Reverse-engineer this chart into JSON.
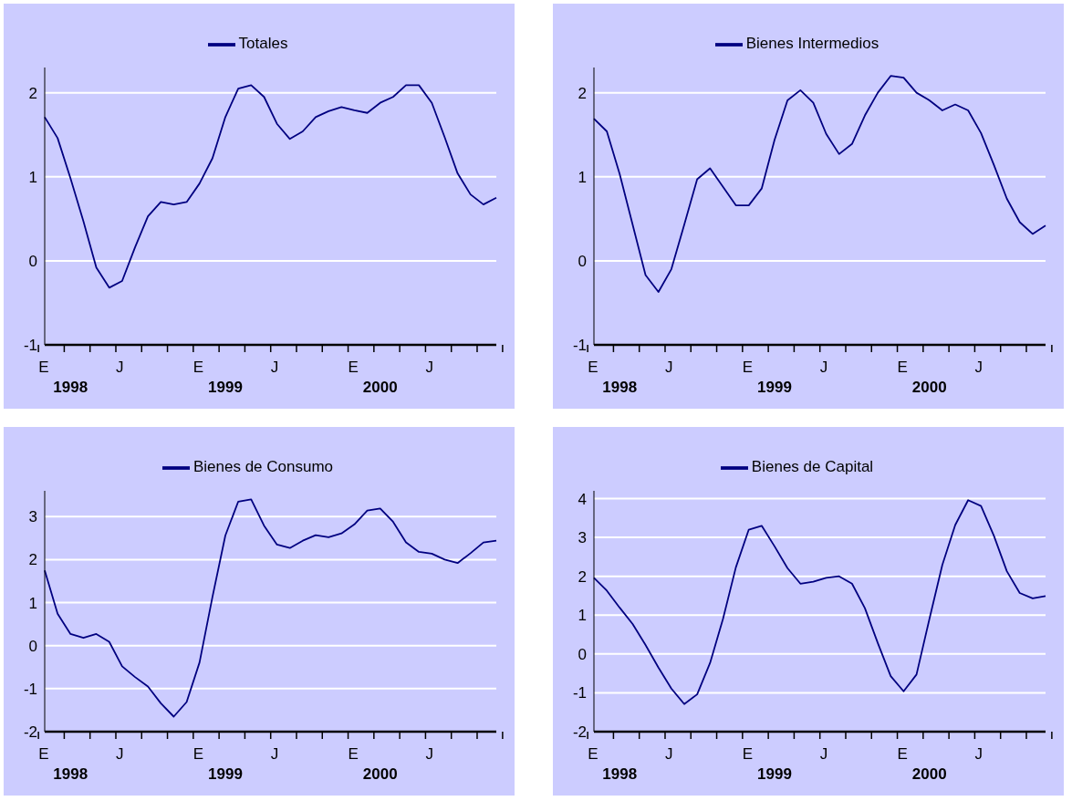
{
  "chart_data": [
    {
      "type": "line",
      "categories": [
        "E",
        null,
        null,
        null,
        null,
        null,
        "J",
        null,
        null,
        null,
        null,
        null,
        "E",
        null,
        null,
        null,
        null,
        null,
        "J",
        null,
        null,
        null,
        null,
        null,
        "E",
        null,
        null,
        null,
        null,
        null,
        "J",
        null,
        null,
        null,
        null,
        null
      ],
      "annotations": [
        "1998",
        "1999",
        "2000"
      ],
      "series": [
        {
          "name": "Totales",
          "color": "#000080",
          "values": [
            1.71,
            1.46,
            0.98,
            0.47,
            -0.08,
            -0.32,
            -0.24,
            0.16,
            0.53,
            0.7,
            0.67,
            0.7,
            0.92,
            1.22,
            1.71,
            2.05,
            2.09,
            1.95,
            1.63,
            1.45,
            1.54,
            1.71,
            1.78,
            1.83,
            1.79,
            1.76,
            1.88,
            1.95,
            2.09,
            2.09,
            1.88,
            1.47,
            1.04,
            0.79,
            0.67,
            0.75
          ]
        }
      ],
      "ylim": [
        -1,
        2.3
      ],
      "yticks": [
        -1,
        0,
        1,
        2
      ],
      "grid": "y",
      "legend": "top",
      "marker": "none"
    },
    {
      "type": "line",
      "categories": [
        "E",
        null,
        null,
        null,
        null,
        null,
        "J",
        null,
        null,
        null,
        null,
        null,
        "E",
        null,
        null,
        null,
        null,
        null,
        "J",
        null,
        null,
        null,
        null,
        null,
        "E",
        null,
        null,
        null,
        null,
        null,
        "J",
        null,
        null,
        null,
        null,
        null
      ],
      "annotations": [
        "1998",
        "1999",
        "2000"
      ],
      "series": [
        {
          "name": "Bienes Intermedios",
          "color": "#000080",
          "values": [
            1.69,
            1.54,
            1.03,
            0.43,
            -0.17,
            -0.37,
            -0.1,
            0.43,
            0.97,
            1.1,
            0.88,
            0.66,
            0.66,
            0.86,
            1.44,
            1.91,
            2.03,
            1.88,
            1.51,
            1.27,
            1.39,
            1.73,
            2.0,
            2.2,
            2.18,
            2.0,
            1.91,
            1.79,
            1.86,
            1.79,
            1.52,
            1.14,
            0.74,
            0.46,
            0.32,
            0.42
          ]
        }
      ],
      "ylim": [
        -1,
        2.3
      ],
      "yticks": [
        -1,
        0,
        1,
        2
      ],
      "grid": "y",
      "legend": "top",
      "marker": "none"
    },
    {
      "type": "line",
      "categories": [
        "E",
        null,
        null,
        null,
        null,
        null,
        "J",
        null,
        null,
        null,
        null,
        null,
        "E",
        null,
        null,
        null,
        null,
        null,
        "J",
        null,
        null,
        null,
        null,
        null,
        "E",
        null,
        null,
        null,
        null,
        null,
        "J",
        null,
        null,
        null,
        null,
        null
      ],
      "annotations": [
        "1998",
        "1999",
        "2000"
      ],
      "series": [
        {
          "name": "Bienes de Consumo",
          "color": "#000080",
          "values": [
            1.75,
            0.74,
            0.27,
            0.18,
            0.27,
            0.09,
            -0.48,
            -0.73,
            -0.95,
            -1.34,
            -1.65,
            -1.31,
            -0.39,
            1.13,
            2.56,
            3.35,
            3.4,
            2.79,
            2.35,
            2.27,
            2.44,
            2.57,
            2.52,
            2.61,
            2.82,
            3.14,
            3.19,
            2.88,
            2.4,
            2.18,
            2.14,
            2.0,
            1.92,
            2.15,
            2.4,
            2.44
          ]
        }
      ],
      "ylim": [
        -2,
        3.6
      ],
      "yticks": [
        -2,
        -1,
        0,
        1,
        2,
        3
      ],
      "grid": "y",
      "legend": "top",
      "marker": "none"
    },
    {
      "type": "line",
      "categories": [
        "E",
        null,
        null,
        null,
        null,
        null,
        "J",
        null,
        null,
        null,
        null,
        null,
        "E",
        null,
        null,
        null,
        null,
        null,
        "J",
        null,
        null,
        null,
        null,
        null,
        "E",
        null,
        null,
        null,
        null,
        null,
        "J",
        null,
        null,
        null,
        null,
        null
      ],
      "annotations": [
        "1998",
        "1999",
        "2000"
      ],
      "series": [
        {
          "name": "Bienes de Capital",
          "color": "#000080",
          "values": [
            1.96,
            1.63,
            1.19,
            0.77,
            0.23,
            -0.35,
            -0.89,
            -1.29,
            -1.04,
            -0.23,
            0.9,
            2.23,
            3.2,
            3.3,
            2.77,
            2.21,
            1.81,
            1.86,
            1.96,
            2.0,
            1.81,
            1.18,
            0.28,
            -0.57,
            -0.96,
            -0.53,
            0.9,
            2.29,
            3.32,
            3.96,
            3.81,
            3.04,
            2.13,
            1.57,
            1.43,
            1.49
          ]
        }
      ],
      "ylim": [
        -2,
        4.2
      ],
      "yticks": [
        -2,
        -1,
        0,
        1,
        2,
        3,
        4
      ],
      "grid": "y",
      "legend": "top",
      "marker": "none"
    }
  ]
}
